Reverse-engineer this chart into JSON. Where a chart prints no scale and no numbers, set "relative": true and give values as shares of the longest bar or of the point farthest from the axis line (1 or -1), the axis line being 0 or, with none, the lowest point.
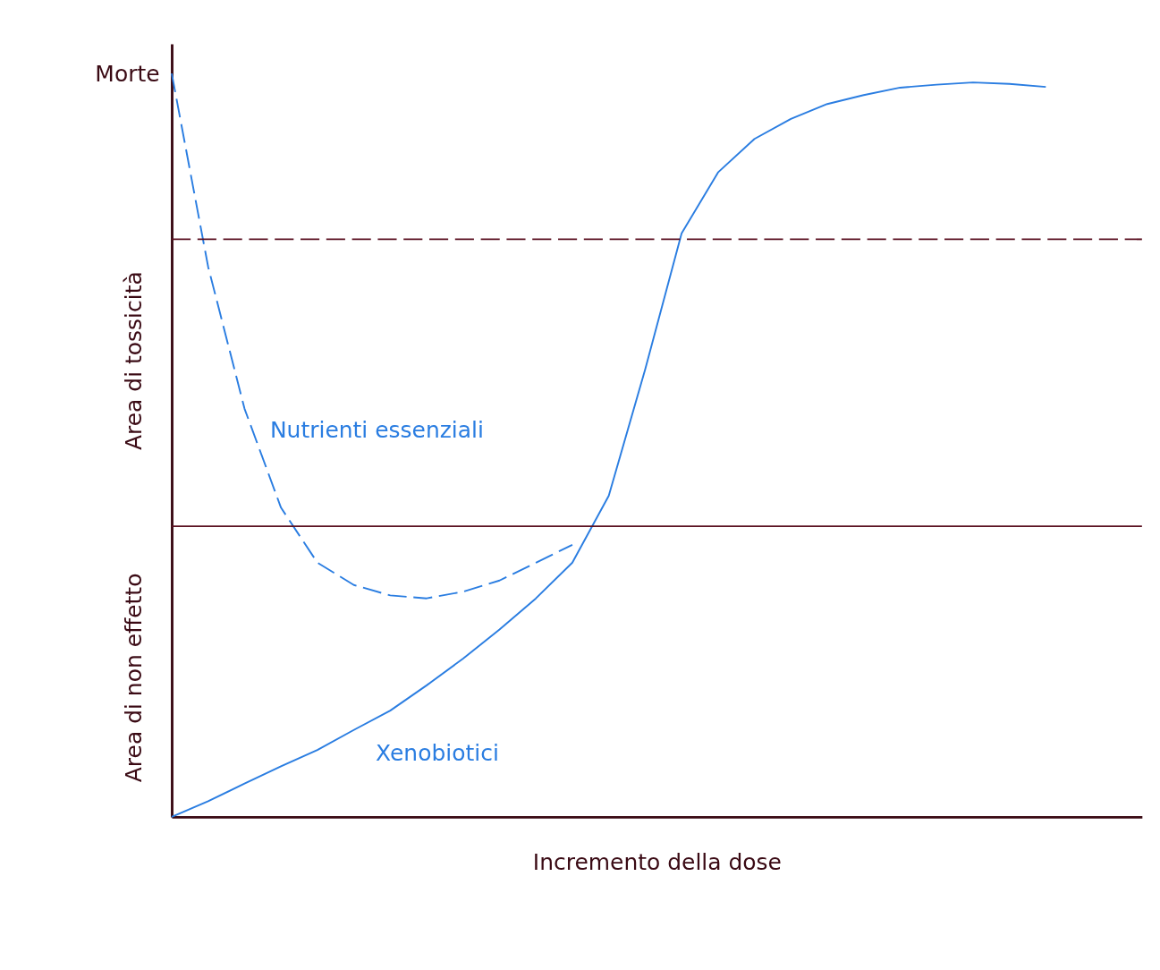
{
  "chart_data": {
    "type": "line",
    "relative": true,
    "xlabel": "Incremento della dose",
    "categories": [
      null,
      null,
      null,
      null,
      null,
      null,
      null,
      null,
      null,
      null,
      null,
      null,
      null,
      null,
      null,
      null,
      null,
      null,
      null,
      null,
      null,
      null,
      null,
      null,
      null
    ],
    "series": [
      {
        "name": "Nutrienti essenziali",
        "color": "#2a7de1",
        "line_style": "dashed",
        "values": [
          1.0,
          0.74,
          0.549,
          0.416,
          0.342,
          0.312,
          0.298,
          0.294,
          0.303,
          0.318,
          0.342,
          0.366,
          null,
          null,
          null,
          null,
          null,
          null,
          null,
          null,
          null,
          null,
          null,
          null,
          null
        ]
      },
      {
        "name": "Xenobiotici",
        "color": "#2a7de1",
        "line_style": "solid",
        "values": [
          0,
          0.021,
          0.045,
          0.068,
          0.09,
          0.117,
          0.143,
          0.177,
          0.213,
          0.252,
          0.294,
          0.342,
          0.432,
          0.602,
          0.785,
          0.867,
          0.912,
          0.939,
          0.959,
          0.971,
          0.981,
          0.985,
          0.988,
          0.986,
          0.982
        ]
      }
    ],
    "ref_lines": [
      {
        "axis": "y",
        "value": 0.777,
        "color": "#5a1020",
        "line_style": "dashed"
      },
      {
        "axis": "y",
        "value": 0.391,
        "color": "#5a1020",
        "line_style": "solid"
      }
    ],
    "annotations": [
      "Morte",
      "Area di tossicità",
      "Area di non effetto"
    ]
  }
}
